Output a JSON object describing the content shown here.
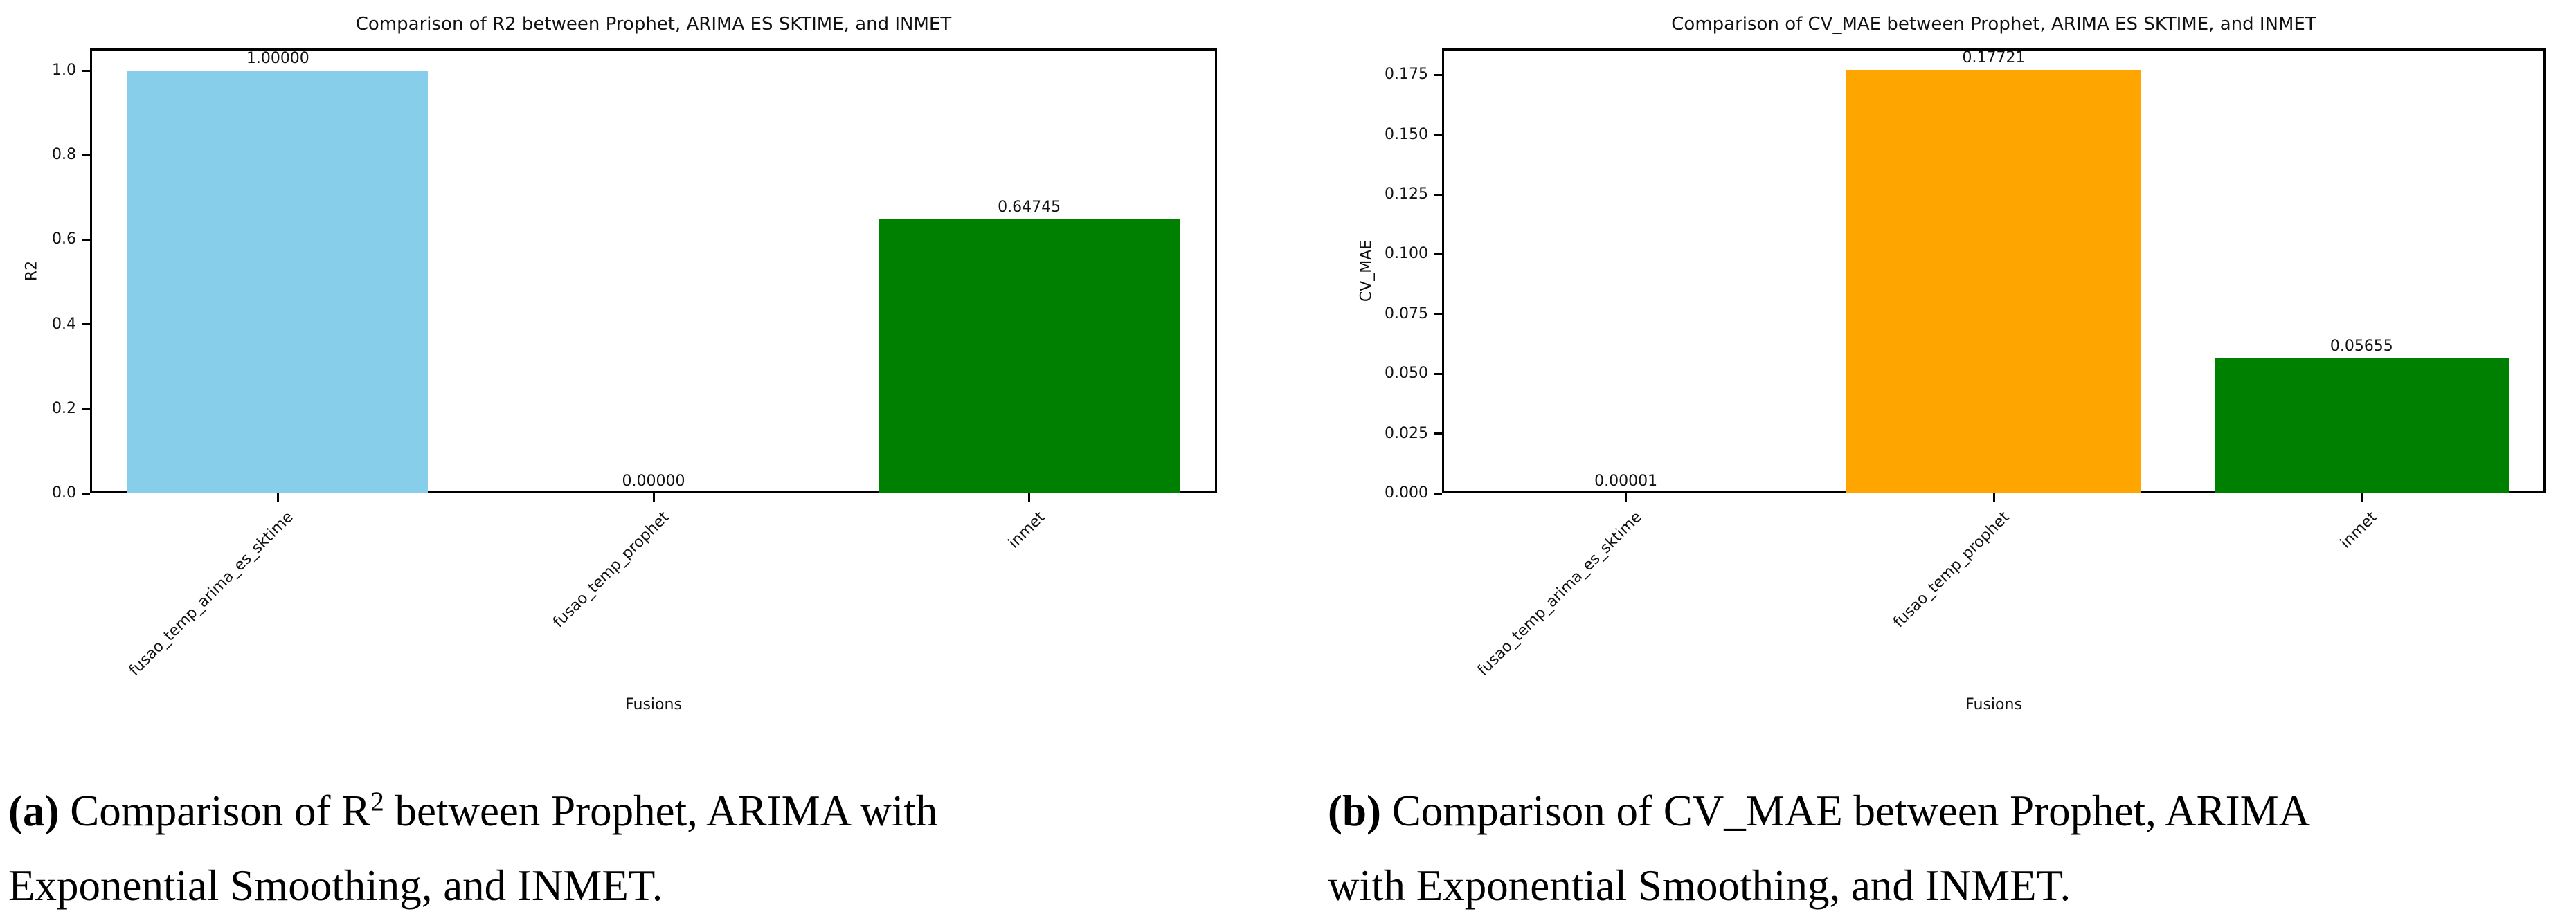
{
  "figure": {
    "captions": {
      "a": {
        "label": "(a)",
        "pre_sup": " Comparison of R",
        "sup": "2",
        "post_sup": " between Prophet, ARIMA with",
        "line2": "Exponential Smoothing, and INMET."
      },
      "b": {
        "label": "(b)",
        "line1": " Comparison of CV_MAE between Prophet, ARIMA",
        "line2": "with Exponential Smoothing, and INMET."
      }
    }
  },
  "chart_data": [
    {
      "type": "bar",
      "title": "Comparison of R2 between Prophet, ARIMA ES SKTIME, and INMET",
      "xlabel": "Fusions",
      "ylabel": "R2",
      "categories": [
        "fusao_temp_arima_es_sktime",
        "fusao_temp_prophet",
        "inmet"
      ],
      "values": [
        1.0,
        0.0,
        0.64745
      ],
      "value_labels": [
        "1.00000",
        "0.00000",
        "0.64745"
      ],
      "bar_colors": [
        "#87CEEB",
        "#FFA500",
        "#008000"
      ],
      "yticks": [
        0.0,
        0.2,
        0.4,
        0.6,
        0.8,
        1.0
      ],
      "ytick_labels": [
        "0.0",
        "0.2",
        "0.4",
        "0.6",
        "0.8",
        "1.0"
      ],
      "ylim": [
        0,
        1.0524
      ],
      "grid": false,
      "legend": null
    },
    {
      "type": "bar",
      "title": "Comparison of CV_MAE between Prophet, ARIMA ES SKTIME, and INMET",
      "xlabel": "Fusions",
      "ylabel": "CV_MAE",
      "categories": [
        "fusao_temp_arima_es_sktime",
        "fusao_temp_prophet",
        "inmet"
      ],
      "values": [
        1e-05,
        0.17721,
        0.05655
      ],
      "value_labels": [
        "0.00001",
        "0.17721",
        "0.05655"
      ],
      "bar_colors": [
        "#87CEEB",
        "#FFA500",
        "#008000"
      ],
      "yticks": [
        0.0,
        0.025,
        0.05,
        0.075,
        0.1,
        0.125,
        0.15,
        0.175
      ],
      "ytick_labels": [
        "0.000",
        "0.025",
        "0.050",
        "0.075",
        "0.100",
        "0.125",
        "0.150",
        "0.175"
      ],
      "ylim": [
        0,
        0.18607
      ],
      "grid": false,
      "legend": null
    }
  ]
}
